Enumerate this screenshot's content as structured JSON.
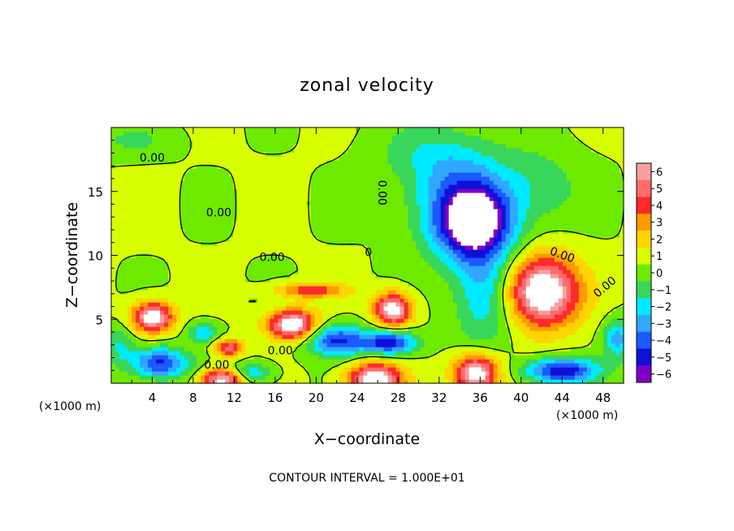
{
  "chart_data": {
    "type": "heatmap",
    "title": "zonal velocity",
    "xlabel": "X−coordinate",
    "ylabel": "Z−coordinate",
    "x_unit_left": "(×1000 m)",
    "x_unit_right": "(×1000 m)",
    "footer": "CONTOUR INTERVAL = 1.000E+01",
    "xlim": [
      0,
      50
    ],
    "ylim": [
      0,
      20
    ],
    "x_ticks": [
      "4",
      "8",
      "12",
      "16",
      "20",
      "24",
      "28",
      "32",
      "36",
      "40",
      "44",
      "48"
    ],
    "x_tick_values": [
      4,
      8,
      12,
      16,
      20,
      24,
      28,
      32,
      36,
      40,
      44,
      48
    ],
    "y_ticks": [
      "5",
      "10",
      "15"
    ],
    "y_tick_values": [
      5,
      10,
      15
    ],
    "colorbar": {
      "ticks": [
        "6",
        "5",
        "4",
        "3",
        "2",
        "1",
        "0",
        "−1",
        "−2",
        "−3",
        "−4",
        "−5",
        "−6"
      ],
      "values": [
        6,
        5,
        4,
        3,
        2,
        1,
        0,
        -1,
        -2,
        -3,
        -4,
        -5,
        -6
      ],
      "colors": [
        "#f4a0a0",
        "#ff6a6a",
        "#ff2a2a",
        "#ff9a00",
        "#ffd400",
        "#d8ff00",
        "#6eea00",
        "#38d65a",
        "#00eaff",
        "#30a8ff",
        "#1a5aff",
        "#1010d8",
        "#8000c8"
      ]
    },
    "contour_labels": [
      {
        "text": "0.00",
        "x": 4.0,
        "z": 17.6,
        "rotate": 0
      },
      {
        "text": "0.00",
        "x": 10.5,
        "z": 13.3,
        "rotate": 0
      },
      {
        "text": "0.00",
        "x": 15.7,
        "z": 9.8,
        "rotate": 0
      },
      {
        "text": "0.00",
        "x": 26.4,
        "z": 14.9,
        "rotate": 90
      },
      {
        "text": "0.00",
        "x": 44.0,
        "z": 10.0,
        "rotate": 20
      },
      {
        "text": "0.00",
        "x": 48.2,
        "z": 7.5,
        "rotate": -40
      },
      {
        "text": "0.00",
        "x": 16.5,
        "z": 2.5,
        "rotate": 0
      },
      {
        "text": "0.00",
        "x": 10.3,
        "z": 1.4,
        "rotate": 0
      },
      {
        "text": "0",
        "x": 25.1,
        "z": 10.2,
        "rotate": 0
      }
    ],
    "features": [
      {
        "value": -5.6,
        "x": 35.5,
        "z": 12.5,
        "rx": 3.5,
        "rz": 2.8
      },
      {
        "value": -4.0,
        "x": 34.5,
        "z": 14.0,
        "rx": 5.0,
        "rz": 4.0
      },
      {
        "value": -3.2,
        "x": 36.5,
        "z": 7.0,
        "rx": 3.0,
        "rz": 4.0
      },
      {
        "value": -1.6,
        "x": 31.0,
        "z": 18.0,
        "rx": 5.0,
        "rz": 2.5
      },
      {
        "value": -1.5,
        "x": 42.0,
        "z": 15.5,
        "rx": 4.0,
        "rz": 3.0
      },
      {
        "value": 7.5,
        "x": 42.0,
        "z": 7.2,
        "rx": 3.6,
        "rz": 2.8
      },
      {
        "value": 6.8,
        "x": 4.0,
        "z": 5.2,
        "rx": 2.0,
        "rz": 1.2
      },
      {
        "value": 7.0,
        "x": 17.7,
        "z": 4.6,
        "rx": 2.4,
        "rz": 1.2
      },
      {
        "value": 6.8,
        "x": 27.5,
        "z": 5.8,
        "rx": 1.8,
        "rz": 1.3
      },
      {
        "value": -5.8,
        "x": 27.2,
        "z": 3.2,
        "rx": 2.5,
        "rz": 0.9
      },
      {
        "value": -5.3,
        "x": 22.0,
        "z": 3.4,
        "rx": 3.0,
        "rz": 1.2
      },
      {
        "value": -6.0,
        "x": 44.0,
        "z": 1.0,
        "rx": 3.5,
        "rz": 1.0
      },
      {
        "value": -5.3,
        "x": 4.7,
        "z": 1.6,
        "rx": 2.8,
        "rz": 1.2
      },
      {
        "value": 7.0,
        "x": 25.7,
        "z": 0.3,
        "rx": 2.6,
        "rz": 1.3
      },
      {
        "value": 7.0,
        "x": 35.6,
        "z": 0.8,
        "rx": 2.2,
        "rz": 1.5
      },
      {
        "value": 6.5,
        "x": 11.0,
        "z": 0.3,
        "rx": 2.2,
        "rz": 0.9
      },
      {
        "value": 4.5,
        "x": 11.5,
        "z": 2.8,
        "rx": 1.4,
        "rz": 0.7
      },
      {
        "value": 3.5,
        "x": 19.5,
        "z": 7.3,
        "rx": 3.5,
        "rz": 0.6
      },
      {
        "value": -3.5,
        "x": 13.5,
        "z": 0.8,
        "rx": 2.0,
        "rz": 0.8
      },
      {
        "value": -2.8,
        "x": 9.0,
        "z": 4.0,
        "rx": 1.5,
        "rz": 0.8
      },
      {
        "value": -2.0,
        "x": 0.8,
        "z": 3.0,
        "rx": 1.5,
        "rz": 1.5
      },
      {
        "value": -3.5,
        "x": 49.5,
        "z": 3.5,
        "rx": 1.5,
        "rz": 1.5
      },
      {
        "value": -1.2,
        "x": 2.0,
        "z": 19.0,
        "rx": 4.0,
        "rz": 1.2
      }
    ]
  }
}
